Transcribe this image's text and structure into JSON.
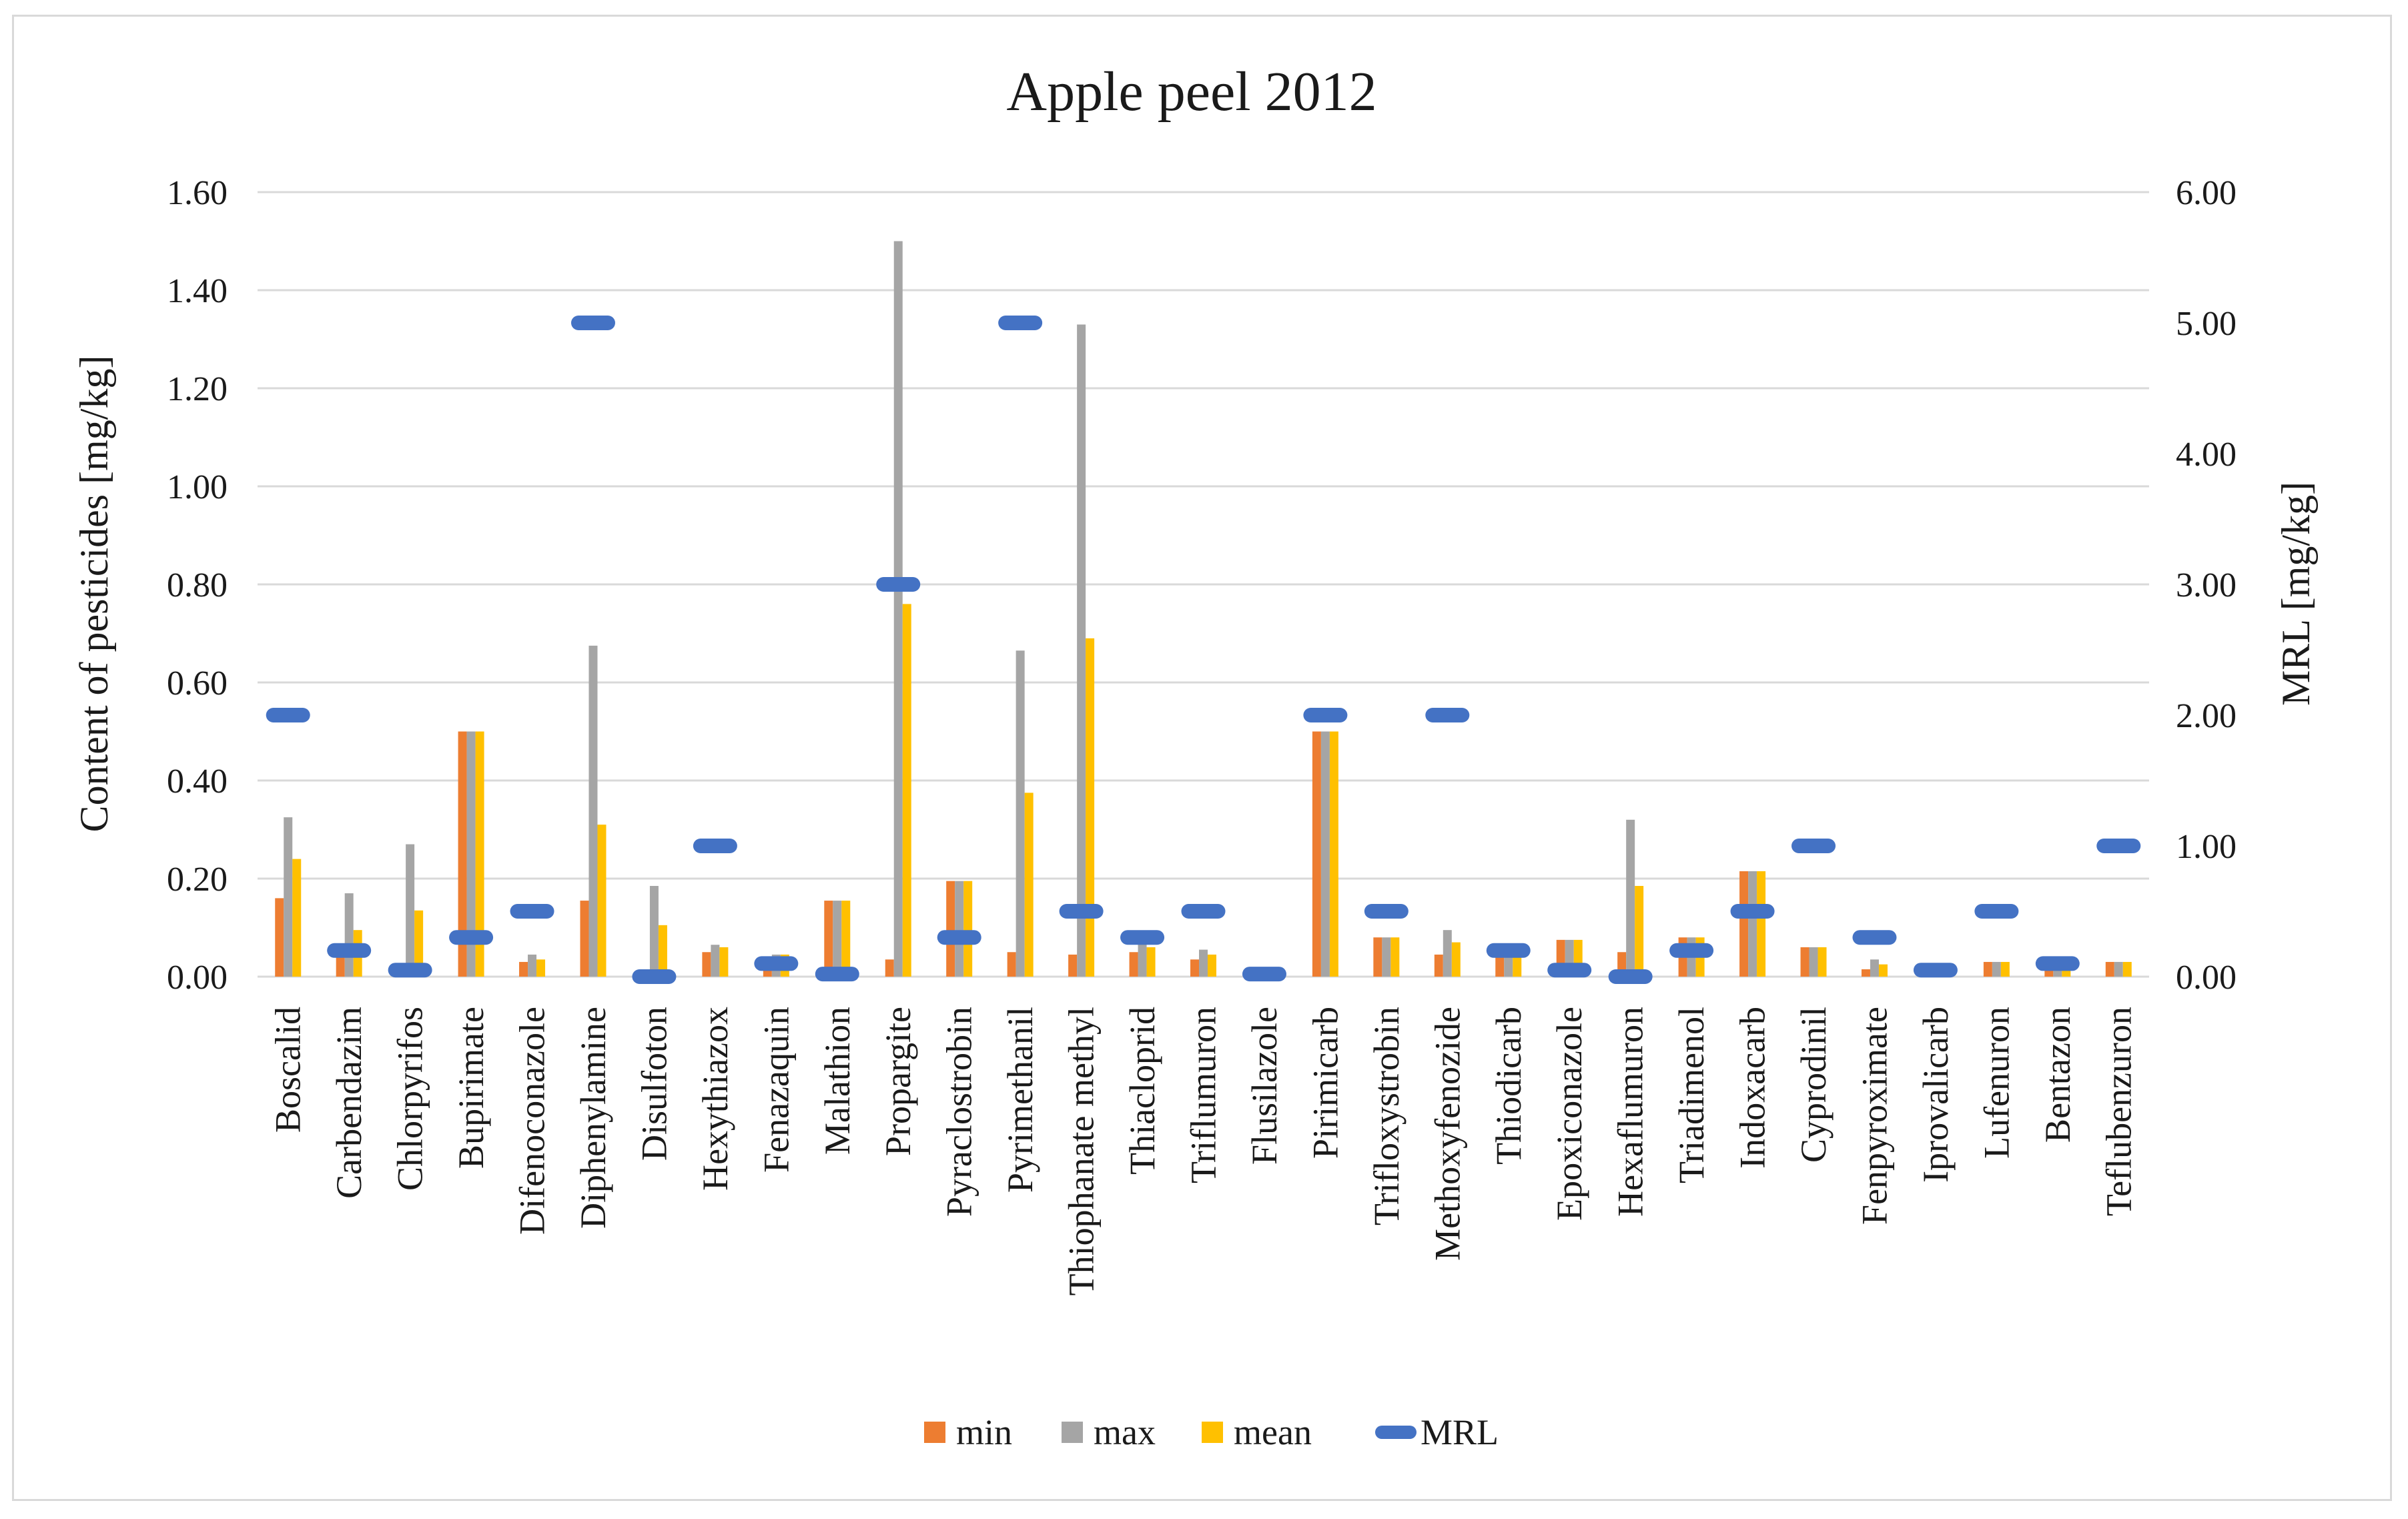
{
  "chart_data": {
    "type": "bar",
    "title": "Apple peel 2012",
    "ylabel": "Content of pesticides [mg/kg]",
    "y2label": "MRL [mg/kg]",
    "ylim": [
      0,
      1.6
    ],
    "y2lim": [
      0,
      6
    ],
    "yticks": [
      "0.00",
      "0.20",
      "0.40",
      "0.60",
      "0.80",
      "1.00",
      "1.20",
      "1.40",
      "1.60"
    ],
    "y2ticks": [
      "0.00",
      "1.00",
      "2.00",
      "3.00",
      "4.00",
      "5.00",
      "6.00"
    ],
    "grid": true,
    "legend_position": "bottom",
    "categories": [
      "Boscalid",
      "Carbendazim",
      "Chlorpyrifos",
      "Bupirimate",
      "Difenoconazole",
      "Diphenylamine",
      "Disulfoton",
      "Hexythiazox",
      "Fenazaquin",
      "Malathion",
      "Propargite",
      "Pyraclostrobin",
      "Pyrimethanil",
      "Thiophanate methyl",
      "Thiacloprid",
      "Triflumuron",
      "Flusilazole",
      "Pirimicarb",
      "Trifloxystrobin",
      "Methoxyfenozide",
      "Thiodicarb",
      "Epoxiconazole",
      "Hexaflumuron",
      "Triadimenol",
      "Indoxacarb",
      "Cyprodinil",
      "Fenpyroximate",
      "Iprovalicarb",
      "Lufenuron",
      "Bentazon",
      "Teflubenzuron"
    ],
    "series": [
      {
        "name": "min",
        "color": "#ed7d31",
        "axis": "left",
        "values": [
          0.16,
          0.06,
          0.01,
          0.5,
          0.03,
          0.155,
          0.005,
          0.05,
          0.04,
          0.155,
          0.035,
          0.195,
          0.05,
          0.045,
          0.05,
          0.035,
          0.005,
          0.5,
          0.08,
          0.045,
          0.05,
          0.075,
          0.05,
          0.08,
          0.215,
          0.06,
          0.015,
          0.01,
          0.03,
          0.02,
          0.03
        ]
      },
      {
        "name": "max",
        "color": "#a5a5a5",
        "axis": "left",
        "values": [
          0.325,
          0.17,
          0.27,
          0.5,
          0.045,
          0.675,
          0.185,
          0.065,
          0.045,
          0.155,
          1.5,
          0.195,
          0.665,
          1.33,
          0.07,
          0.055,
          0.005,
          0.5,
          0.08,
          0.095,
          0.05,
          0.075,
          0.32,
          0.08,
          0.215,
          0.06,
          0.035,
          0.01,
          0.03,
          0.02,
          0.03
        ]
      },
      {
        "name": "mean",
        "color": "#ffc000",
        "axis": "left",
        "values": [
          0.24,
          0.095,
          0.135,
          0.5,
          0.035,
          0.31,
          0.105,
          0.06,
          0.045,
          0.155,
          0.76,
          0.195,
          0.375,
          0.69,
          0.06,
          0.045,
          0.005,
          0.5,
          0.08,
          0.07,
          0.05,
          0.075,
          0.185,
          0.08,
          0.215,
          0.06,
          0.025,
          0.01,
          0.03,
          0.02,
          0.03
        ]
      },
      {
        "name": "MRL",
        "color": "#4472c4",
        "axis": "right",
        "style": "dash-marker",
        "values": [
          2.0,
          0.2,
          0.05,
          0.3,
          0.5,
          5.0,
          0.0,
          1.0,
          0.1,
          0.02,
          3.0,
          0.3,
          5.0,
          0.5,
          0.3,
          0.5,
          0.02,
          2.0,
          0.5,
          2.0,
          0.2,
          0.05,
          0.0,
          0.2,
          0.5,
          1.0,
          0.3,
          0.05,
          0.5,
          0.1,
          1.0
        ]
      }
    ]
  }
}
